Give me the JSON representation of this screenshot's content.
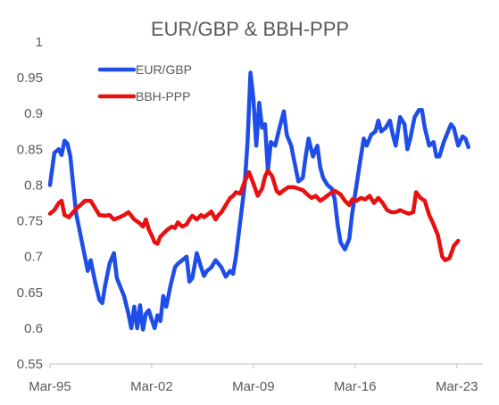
{
  "chart_data": {
    "type": "line",
    "title": "EUR/GBP & BBH-PPP",
    "xlabel": "",
    "ylabel": "",
    "x_range": [
      1995.2,
      2025.0
    ],
    "x_ticks": [
      {
        "value": 1995.2,
        "label": "Mar-95"
      },
      {
        "value": 2002.2,
        "label": "Mar-02"
      },
      {
        "value": 2009.2,
        "label": "Mar-09"
      },
      {
        "value": 2016.2,
        "label": "Mar-16"
      },
      {
        "value": 2023.2,
        "label": "Mar-23"
      }
    ],
    "ylim": [
      0.55,
      1.0
    ],
    "y_ticks": [
      {
        "value": 0.55,
        "label": "0.55"
      },
      {
        "value": 0.6,
        "label": "0.6"
      },
      {
        "value": 0.65,
        "label": "0.65"
      },
      {
        "value": 0.7,
        "label": "0.7"
      },
      {
        "value": 0.75,
        "label": "0.75"
      },
      {
        "value": 0.8,
        "label": "0.8"
      },
      {
        "value": 0.85,
        "label": "0.85"
      },
      {
        "value": 0.9,
        "label": "0.9"
      },
      {
        "value": 0.95,
        "label": "0.95"
      },
      {
        "value": 1.0,
        "label": "1"
      }
    ],
    "grid": false,
    "legend_position": "top-left",
    "series": [
      {
        "name": "EUR/GBP",
        "color": "#1f4de8",
        "points": [
          [
            1995.2,
            0.8
          ],
          [
            1995.5,
            0.845
          ],
          [
            1995.8,
            0.85
          ],
          [
            1996.0,
            0.842
          ],
          [
            1996.2,
            0.862
          ],
          [
            1996.4,
            0.858
          ],
          [
            1996.6,
            0.84
          ],
          [
            1996.8,
            0.8
          ],
          [
            1997.0,
            0.76
          ],
          [
            1997.2,
            0.74
          ],
          [
            1997.4,
            0.72
          ],
          [
            1997.6,
            0.7
          ],
          [
            1997.8,
            0.68
          ],
          [
            1998.0,
            0.695
          ],
          [
            1998.3,
            0.665
          ],
          [
            1998.6,
            0.64
          ],
          [
            1998.8,
            0.635
          ],
          [
            1999.0,
            0.66
          ],
          [
            1999.3,
            0.69
          ],
          [
            1999.6,
            0.705
          ],
          [
            1999.8,
            0.67
          ],
          [
            2000.0,
            0.66
          ],
          [
            2000.3,
            0.645
          ],
          [
            2000.6,
            0.62
          ],
          [
            2000.8,
            0.6
          ],
          [
            2001.0,
            0.63
          ],
          [
            2001.2,
            0.6
          ],
          [
            2001.4,
            0.632
          ],
          [
            2001.6,
            0.598
          ],
          [
            2001.8,
            0.62
          ],
          [
            2002.0,
            0.625
          ],
          [
            2002.2,
            0.612
          ],
          [
            2002.4,
            0.6
          ],
          [
            2002.6,
            0.618
          ],
          [
            2002.8,
            0.61
          ],
          [
            2003.0,
            0.645
          ],
          [
            2003.2,
            0.63
          ],
          [
            2003.5,
            0.66
          ],
          [
            2003.8,
            0.685
          ],
          [
            2004.0,
            0.69
          ],
          [
            2004.3,
            0.695
          ],
          [
            2004.6,
            0.7
          ],
          [
            2004.8,
            0.665
          ],
          [
            2005.0,
            0.67
          ],
          [
            2005.3,
            0.705
          ],
          [
            2005.6,
            0.685
          ],
          [
            2005.8,
            0.673
          ],
          [
            2006.0,
            0.68
          ],
          [
            2006.3,
            0.685
          ],
          [
            2006.6,
            0.695
          ],
          [
            2006.8,
            0.69
          ],
          [
            2007.0,
            0.685
          ],
          [
            2007.3,
            0.672
          ],
          [
            2007.6,
            0.68
          ],
          [
            2007.8,
            0.676
          ],
          [
            2008.0,
            0.7
          ],
          [
            2008.3,
            0.75
          ],
          [
            2008.6,
            0.8
          ],
          [
            2008.8,
            0.86
          ],
          [
            2009.0,
            0.957
          ],
          [
            2009.2,
            0.92
          ],
          [
            2009.4,
            0.855
          ],
          [
            2009.6,
            0.915
          ],
          [
            2009.8,
            0.88
          ],
          [
            2010.0,
            0.885
          ],
          [
            2010.2,
            0.82
          ],
          [
            2010.4,
            0.86
          ],
          [
            2010.7,
            0.855
          ],
          [
            2011.0,
            0.88
          ],
          [
            2011.3,
            0.903
          ],
          [
            2011.5,
            0.87
          ],
          [
            2011.8,
            0.855
          ],
          [
            2012.0,
            0.835
          ],
          [
            2012.3,
            0.805
          ],
          [
            2012.6,
            0.81
          ],
          [
            2012.8,
            0.84
          ],
          [
            2013.0,
            0.865
          ],
          [
            2013.3,
            0.84
          ],
          [
            2013.6,
            0.855
          ],
          [
            2013.8,
            0.825
          ],
          [
            2014.0,
            0.81
          ],
          [
            2014.3,
            0.8
          ],
          [
            2014.6,
            0.795
          ],
          [
            2014.8,
            0.78
          ],
          [
            2015.0,
            0.745
          ],
          [
            2015.2,
            0.72
          ],
          [
            2015.5,
            0.71
          ],
          [
            2015.8,
            0.725
          ],
          [
            2016.0,
            0.76
          ],
          [
            2016.3,
            0.8
          ],
          [
            2016.6,
            0.84
          ],
          [
            2016.8,
            0.865
          ],
          [
            2017.0,
            0.855
          ],
          [
            2017.3,
            0.87
          ],
          [
            2017.6,
            0.875
          ],
          [
            2017.8,
            0.89
          ],
          [
            2018.0,
            0.875
          ],
          [
            2018.3,
            0.88
          ],
          [
            2018.6,
            0.89
          ],
          [
            2018.8,
            0.87
          ],
          [
            2019.0,
            0.855
          ],
          [
            2019.3,
            0.895
          ],
          [
            2019.6,
            0.885
          ],
          [
            2019.8,
            0.85
          ],
          [
            2020.0,
            0.865
          ],
          [
            2020.3,
            0.895
          ],
          [
            2020.6,
            0.905
          ],
          [
            2020.8,
            0.905
          ],
          [
            2021.0,
            0.88
          ],
          [
            2021.3,
            0.855
          ],
          [
            2021.6,
            0.86
          ],
          [
            2021.8,
            0.84
          ],
          [
            2022.0,
            0.84
          ],
          [
            2022.3,
            0.86
          ],
          [
            2022.6,
            0.875
          ],
          [
            2022.8,
            0.885
          ],
          [
            2023.0,
            0.88
          ],
          [
            2023.3,
            0.855
          ],
          [
            2023.6,
            0.868
          ],
          [
            2023.8,
            0.865
          ],
          [
            2024.0,
            0.853
          ]
        ]
      },
      {
        "name": "BBH-PPP",
        "color": "#e81010",
        "points": [
          [
            1995.2,
            0.76
          ],
          [
            1995.5,
            0.765
          ],
          [
            1995.8,
            0.775
          ],
          [
            1996.0,
            0.778
          ],
          [
            1996.2,
            0.758
          ],
          [
            1996.5,
            0.755
          ],
          [
            1996.8,
            0.762
          ],
          [
            1997.0,
            0.767
          ],
          [
            1997.3,
            0.772
          ],
          [
            1997.6,
            0.778
          ],
          [
            1998.0,
            0.778
          ],
          [
            1998.3,
            0.768
          ],
          [
            1998.6,
            0.758
          ],
          [
            1999.0,
            0.757
          ],
          [
            1999.3,
            0.758
          ],
          [
            1999.6,
            0.752
          ],
          [
            2000.0,
            0.755
          ],
          [
            2000.3,
            0.758
          ],
          [
            2000.6,
            0.762
          ],
          [
            2001.0,
            0.752
          ],
          [
            2001.3,
            0.748
          ],
          [
            2001.6,
            0.742
          ],
          [
            2001.8,
            0.752
          ],
          [
            2002.0,
            0.738
          ],
          [
            2002.2,
            0.73
          ],
          [
            2002.4,
            0.72
          ],
          [
            2002.6,
            0.718
          ],
          [
            2002.8,
            0.728
          ],
          [
            2003.0,
            0.732
          ],
          [
            2003.3,
            0.738
          ],
          [
            2003.6,
            0.742
          ],
          [
            2003.8,
            0.74
          ],
          [
            2004.0,
            0.748
          ],
          [
            2004.3,
            0.742
          ],
          [
            2004.6,
            0.745
          ],
          [
            2004.8,
            0.752
          ],
          [
            2005.0,
            0.757
          ],
          [
            2005.3,
            0.752
          ],
          [
            2005.6,
            0.758
          ],
          [
            2005.8,
            0.755
          ],
          [
            2006.0,
            0.758
          ],
          [
            2006.3,
            0.763
          ],
          [
            2006.6,
            0.752
          ],
          [
            2006.8,
            0.758
          ],
          [
            2007.0,
            0.762
          ],
          [
            2007.3,
            0.772
          ],
          [
            2007.6,
            0.782
          ],
          [
            2007.8,
            0.785
          ],
          [
            2008.0,
            0.79
          ],
          [
            2008.3,
            0.788
          ],
          [
            2008.6,
            0.805
          ],
          [
            2008.9,
            0.818
          ],
          [
            2009.2,
            0.802
          ],
          [
            2009.5,
            0.785
          ],
          [
            2009.8,
            0.795
          ],
          [
            2010.0,
            0.812
          ],
          [
            2010.2,
            0.82
          ],
          [
            2010.5,
            0.812
          ],
          [
            2010.8,
            0.792
          ],
          [
            2011.0,
            0.788
          ],
          [
            2011.3,
            0.793
          ],
          [
            2011.6,
            0.797
          ],
          [
            2012.0,
            0.797
          ],
          [
            2012.3,
            0.795
          ],
          [
            2012.6,
            0.793
          ],
          [
            2012.9,
            0.787
          ],
          [
            2013.2,
            0.782
          ],
          [
            2013.5,
            0.785
          ],
          [
            2013.8,
            0.778
          ],
          [
            2014.1,
            0.782
          ],
          [
            2014.4,
            0.787
          ],
          [
            2014.8,
            0.792
          ],
          [
            2015.2,
            0.787
          ],
          [
            2015.5,
            0.778
          ],
          [
            2015.8,
            0.772
          ],
          [
            2016.0,
            0.78
          ],
          [
            2016.3,
            0.778
          ],
          [
            2016.6,
            0.782
          ],
          [
            2016.9,
            0.78
          ],
          [
            2017.2,
            0.785
          ],
          [
            2017.5,
            0.775
          ],
          [
            2017.8,
            0.782
          ],
          [
            2018.1,
            0.775
          ],
          [
            2018.4,
            0.765
          ],
          [
            2018.7,
            0.762
          ],
          [
            2019.0,
            0.762
          ],
          [
            2019.3,
            0.765
          ],
          [
            2019.6,
            0.762
          ],
          [
            2019.9,
            0.76
          ],
          [
            2020.2,
            0.762
          ],
          [
            2020.4,
            0.79
          ],
          [
            2020.7,
            0.782
          ],
          [
            2021.0,
            0.778
          ],
          [
            2021.3,
            0.758
          ],
          [
            2021.6,
            0.745
          ],
          [
            2021.9,
            0.73
          ],
          [
            2022.2,
            0.7
          ],
          [
            2022.4,
            0.695
          ],
          [
            2022.7,
            0.698
          ],
          [
            2023.0,
            0.715
          ],
          [
            2023.3,
            0.722
          ]
        ]
      }
    ]
  }
}
